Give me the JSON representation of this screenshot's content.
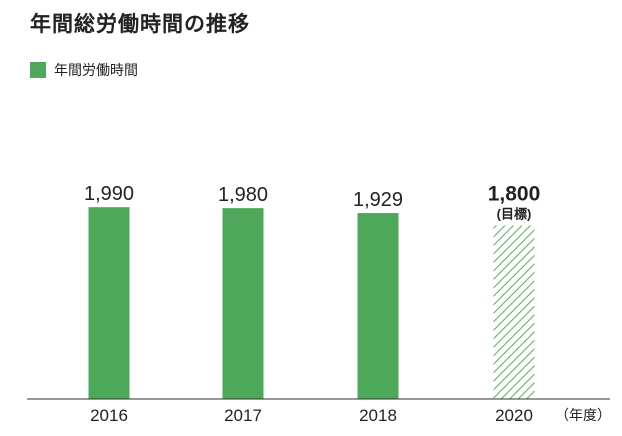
{
  "chart_data": {
    "type": "bar",
    "title": "年間総労働時間の推移",
    "categories": [
      "2016",
      "2017",
      "2018",
      "2020"
    ],
    "series": [
      {
        "name": "年間労働時間",
        "values": [
          1990,
          1980,
          1929,
          1800
        ]
      }
    ],
    "value_labels": [
      "1,990",
      "1,980",
      "1,929",
      "1,800"
    ],
    "target_note": "(目標)",
    "target_index": 3,
    "x_unit": "（年度）",
    "xlabel": "",
    "ylabel": "",
    "grid": false,
    "legend_position": "top-left",
    "colors": {
      "bar": "#4ea85a",
      "target_hatch": "#5aac64",
      "axis": "#333333"
    }
  }
}
